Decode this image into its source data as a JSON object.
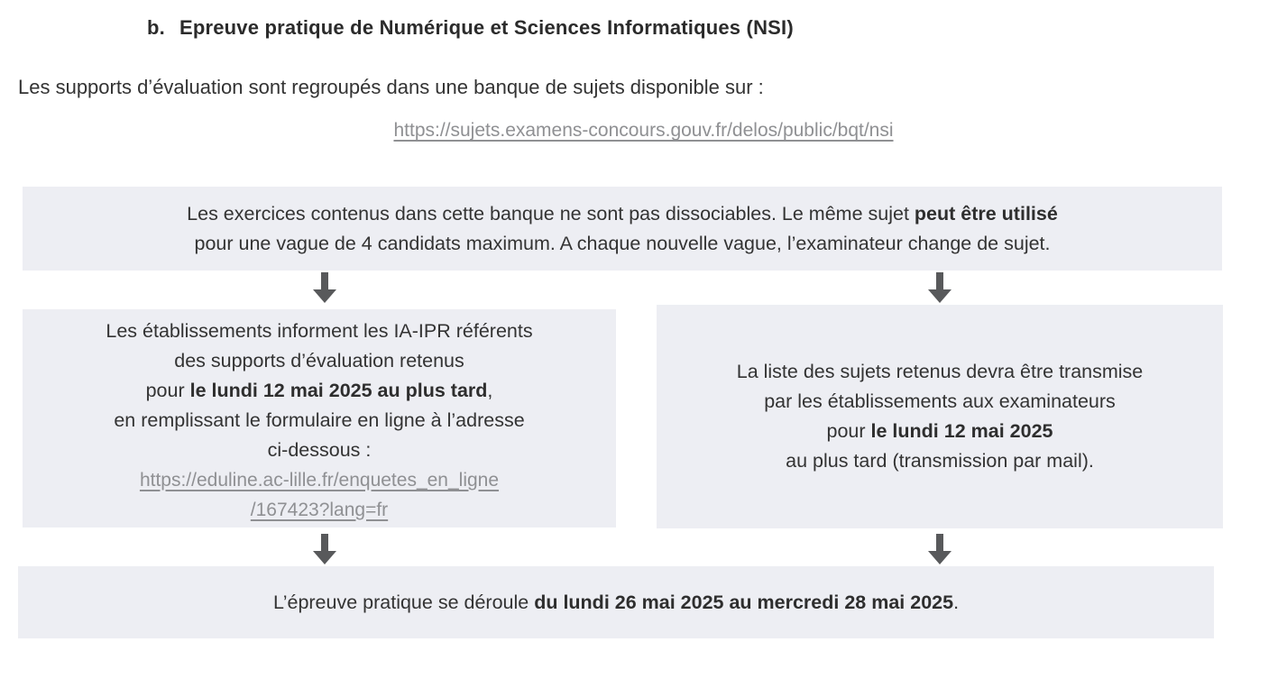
{
  "colors": {
    "box_bg": "#edeef3",
    "text": "#333333",
    "heading": "#2b2b2b",
    "link": "#8f9093",
    "arrow": "#58595b"
  },
  "header": {
    "index": "b.",
    "title": "Epreuve pratique de Numérique et Sciences Informatiques (NSI)"
  },
  "intro": {
    "text": "Les supports d’évaluation sont regroupés dans une banque de sujets disponible sur :",
    "link": "https://sujets.examens-concours.gouv.fr/delos/public/bqt/nsi"
  },
  "flow": {
    "rule_box": {
      "line1_regular": "Les exercices contenus dans cette banque ne sont pas dissociables. Le même sujet ",
      "line1_bold": "peut être utilisé",
      "line2": "pour une vague de 4 candidats maximum. A chaque nouvelle vague, l’examinateur change de sujet."
    },
    "inform_box": {
      "line1": "Les établissements informent les IA-IPR référents",
      "line2": "des supports d’évaluation retenus",
      "line3_regular": "pour ",
      "line3_bold": "le lundi 12 mai 2025 au plus tard",
      "line3_suffix": ",",
      "line4": "en remplissant le formulaire en ligne à l’adresse",
      "line5": "ci-dessous :",
      "link_line1": "https://eduline.ac-lille.fr/enquetes_en_ligne",
      "link_line2": "/167423?lang=fr"
    },
    "transmit_box": {
      "line1": "La liste des sujets retenus devra être transmise",
      "line2": "par les établissements aux examinateurs",
      "line3_regular": "pour ",
      "line3_bold": "le lundi 12 mai 2025",
      "line4": "au plus tard (transmission par mail)."
    },
    "schedule_box": {
      "regular": "L’épreuve pratique se déroule ",
      "bold": "du lundi 26 mai 2025 au mercredi 28 mai 2025",
      "suffix": "."
    }
  }
}
